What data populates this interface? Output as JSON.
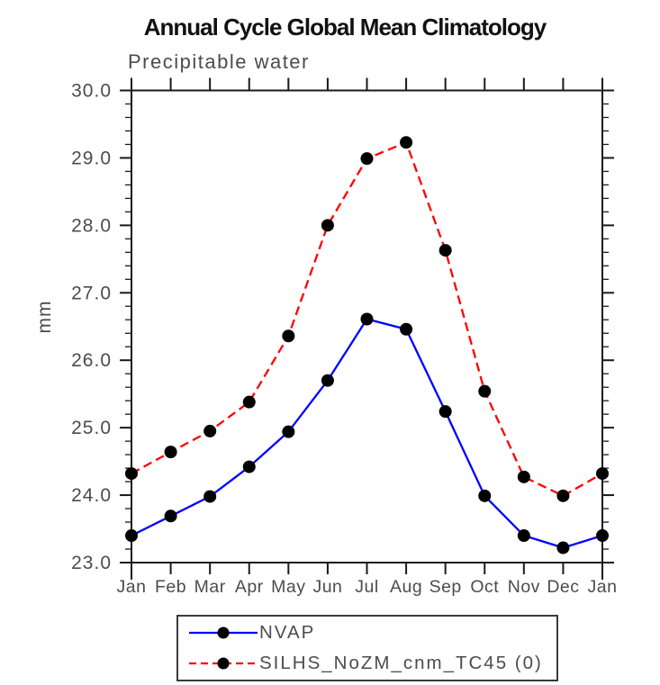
{
  "title": "Annual Cycle Global Mean Climatology",
  "subtitle": "Precipitable water",
  "y_axis_label": "mm",
  "chart_data": {
    "type": "line",
    "title": "Annual Cycle Global Mean Climatology",
    "subtitle": "Precipitable water",
    "xlabel": "",
    "ylabel": "mm",
    "categories": [
      "Jan",
      "Feb",
      "Mar",
      "Apr",
      "May",
      "Jun",
      "Jul",
      "Aug",
      "Sep",
      "Oct",
      "Nov",
      "Dec",
      "Jan"
    ],
    "series": [
      {
        "name": "NVAP",
        "line_color": "#0000ff",
        "line_style": "solid",
        "marker": "filled-circle",
        "marker_color": "#000000",
        "values": [
          23.4,
          23.69,
          23.98,
          24.42,
          24.94,
          25.7,
          26.61,
          26.46,
          25.24,
          23.99,
          23.4,
          23.22,
          23.4
        ]
      },
      {
        "name": "SILHS_NoZM_cnm_TC45 (0)",
        "line_color": "#ff0000",
        "line_style": "dashed",
        "marker": "filled-circle",
        "marker_color": "#000000",
        "values": [
          24.32,
          24.64,
          24.95,
          25.38,
          26.36,
          28.0,
          28.99,
          29.23,
          27.63,
          25.54,
          24.27,
          23.99,
          24.32
        ]
      }
    ],
    "ylim": [
      23.0,
      30.0
    ],
    "y_major_tick_step": 1.0,
    "y_minor_tick_step": 0.2,
    "y_tick_labels": [
      "23.0",
      "24.0",
      "25.0",
      "26.0",
      "27.0",
      "28.0",
      "29.0",
      "30.0"
    ],
    "grid": false,
    "legend_position": "bottom",
    "axis_color": "#1a1a1a",
    "tick_label_color": "#4c4c4c"
  }
}
